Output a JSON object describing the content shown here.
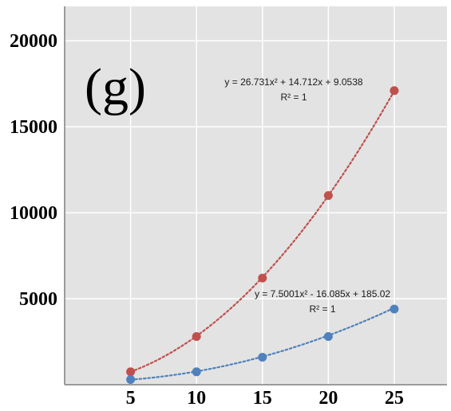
{
  "chart_data": {
    "type": "scatter",
    "title": "",
    "xlabel": "",
    "ylabel": "",
    "panel_label": "(g)",
    "x": [
      5,
      10,
      15,
      20,
      25
    ],
    "x_ticks": [
      "5",
      "10",
      "15",
      "20",
      "25"
    ],
    "y_ticks": [
      "5000",
      "10000",
      "15000",
      "20000"
    ],
    "xlim": [
      0,
      29
    ],
    "ylim": [
      0,
      22000
    ],
    "grid": true,
    "background_color": "#e3e3e3",
    "grid_color": "#ffffff",
    "series": [
      {
        "values": [
          750,
          2800,
          6200,
          11000,
          17100
        ],
        "color": "#c0504d",
        "trendline": {
          "type": "polynomial-2",
          "coefficients": [
            26.731,
            14.712,
            9.0538
          ],
          "equation": "y = 26.731x² + 14.712x + 9.0538",
          "r2": "R² = 1"
        }
      },
      {
        "values": [
          300,
          750,
          1600,
          2800,
          4400
        ],
        "color": "#4f81bd",
        "trendline": {
          "type": "polynomial-2",
          "coefficients": [
            7.5001,
            -16.085,
            185.02
          ],
          "equation": "y = 7.5001x² - 16.085x + 185.02",
          "r2": "R² = 1"
        }
      }
    ]
  }
}
